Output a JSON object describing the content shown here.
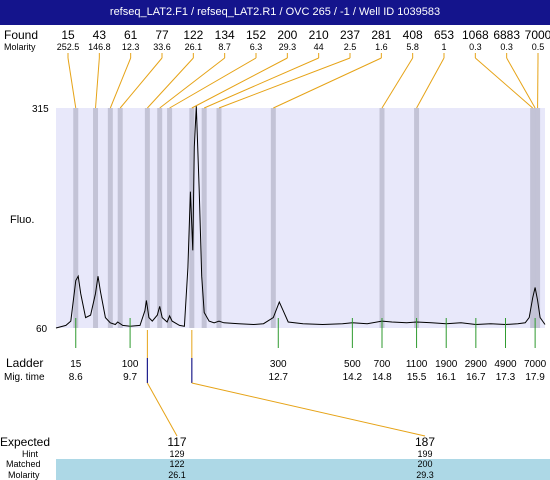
{
  "header": {
    "title": "refseq_LAT2.F1 / refseq_LAT2.R1 / OVC 265 / -1 / Well ID 1039583"
  },
  "labels": {
    "found": "Found",
    "molarity": "Molarity",
    "fluo": "Fluo.",
    "ladder": "Ladder",
    "mig_time": "Mig. time",
    "expected": "Expected",
    "hint": "Hint",
    "matched": "Matched",
    "molarity_bottom": "Molarity"
  },
  "chart_data": {
    "type": "line",
    "ylabel": "Fluo.",
    "ylim": [
      60,
      315
    ],
    "y_ticks": [
      315,
      60
    ],
    "xlim": [
      8.2,
      18.1
    ],
    "x_unit": "Mig. time",
    "found_peaks": [
      {
        "size": "15",
        "molarity": "252.5",
        "time": 8.6
      },
      {
        "size": "43",
        "molarity": "146.8",
        "time": 9.0
      },
      {
        "size": "61",
        "molarity": "12.3",
        "time": 9.3
      },
      {
        "size": "77",
        "molarity": "33.6",
        "time": 9.5
      },
      {
        "size": "122",
        "molarity": "26.1",
        "time": 10.05
      },
      {
        "size": "134",
        "molarity": "8.7",
        "time": 10.3
      },
      {
        "size": "152",
        "molarity": "6.3",
        "time": 10.5
      },
      {
        "size": "200",
        "molarity": "29.3",
        "time": 10.95
      },
      {
        "size": "210",
        "molarity": "44",
        "time": 11.2
      },
      {
        "size": "237",
        "molarity": "2.5",
        "time": 11.5
      },
      {
        "size": "281",
        "molarity": "1.6",
        "time": 12.6
      },
      {
        "size": "408",
        "molarity": "5.8",
        "time": 14.8
      },
      {
        "size": "653",
        "molarity": "1",
        "time": 15.5
      },
      {
        "size": "1068",
        "molarity": "0.3",
        "time": 17.85
      },
      {
        "size": "6883",
        "molarity": "0.3",
        "time": 17.9
      },
      {
        "size": "7000",
        "molarity": "0.5",
        "time": 17.95
      }
    ],
    "ladder": [
      {
        "size": "15",
        "time": 8.6
      },
      {
        "size": "100",
        "time": 9.7
      },
      {
        "size": "300",
        "time": 12.7
      },
      {
        "size": "500",
        "time": 14.2
      },
      {
        "size": "700",
        "time": 14.8
      },
      {
        "size": "1100",
        "time": 15.5
      },
      {
        "size": "1900",
        "time": 16.1
      },
      {
        "size": "2900",
        "time": 16.7
      },
      {
        "size": "4900",
        "time": 17.3
      },
      {
        "size": "7000",
        "time": 17.9
      }
    ],
    "trace": [
      [
        8.2,
        60
      ],
      [
        8.4,
        63
      ],
      [
        8.5,
        68
      ],
      [
        8.6,
        115
      ],
      [
        8.65,
        120
      ],
      [
        8.7,
        100
      ],
      [
        8.8,
        72
      ],
      [
        8.9,
        75
      ],
      [
        9.0,
        100
      ],
      [
        9.05,
        120
      ],
      [
        9.1,
        102
      ],
      [
        9.2,
        72
      ],
      [
        9.3,
        66
      ],
      [
        9.4,
        64
      ],
      [
        9.45,
        67
      ],
      [
        9.55,
        63
      ],
      [
        9.7,
        62
      ],
      [
        9.9,
        63
      ],
      [
        10.0,
        80
      ],
      [
        10.03,
        92
      ],
      [
        10.08,
        72
      ],
      [
        10.15,
        68
      ],
      [
        10.25,
        75
      ],
      [
        10.3,
        85
      ],
      [
        10.35,
        72
      ],
      [
        10.45,
        67
      ],
      [
        10.5,
        74
      ],
      [
        10.55,
        68
      ],
      [
        10.7,
        63
      ],
      [
        10.8,
        62
      ],
      [
        10.87,
        130
      ],
      [
        10.92,
        218
      ],
      [
        10.97,
        150
      ],
      [
        11.0,
        270
      ],
      [
        11.04,
        317
      ],
      [
        11.1,
        220
      ],
      [
        11.15,
        120
      ],
      [
        11.2,
        78
      ],
      [
        11.3,
        68
      ],
      [
        11.4,
        66
      ],
      [
        11.5,
        68
      ],
      [
        11.6,
        66
      ],
      [
        11.9,
        65
      ],
      [
        12.2,
        64
      ],
      [
        12.4,
        65
      ],
      [
        12.6,
        72
      ],
      [
        12.72,
        90
      ],
      [
        12.8,
        80
      ],
      [
        12.9,
        67
      ],
      [
        13.2,
        65
      ],
      [
        13.6,
        64
      ],
      [
        14.0,
        65
      ],
      [
        14.2,
        66
      ],
      [
        14.5,
        65
      ],
      [
        14.8,
        68
      ],
      [
        15.0,
        67
      ],
      [
        15.3,
        66
      ],
      [
        15.5,
        67
      ],
      [
        15.8,
        66
      ],
      [
        16.1,
        65
      ],
      [
        16.4,
        66
      ],
      [
        16.7,
        64
      ],
      [
        17.0,
        65
      ],
      [
        17.3,
        64
      ],
      [
        17.55,
        65
      ],
      [
        17.7,
        66
      ],
      [
        17.78,
        72
      ],
      [
        17.85,
        95
      ],
      [
        17.9,
        107
      ],
      [
        17.95,
        92
      ],
      [
        18.0,
        72
      ],
      [
        18.1,
        64
      ]
    ],
    "expected": [
      {
        "expected": "117",
        "hint": "129",
        "matched": "122",
        "molarity": "26.1",
        "time": 10.05
      },
      {
        "expected": "187",
        "hint": "199",
        "matched": "200",
        "molarity": "29.3",
        "time": 10.95
      }
    ],
    "colors": {
      "title_bg": "#14148c",
      "plot_bg": "#e8e8fa",
      "band": "#c3c3d6",
      "found_line": "#e6a317",
      "ladder_line": "#2e9a2e",
      "marker": "#1e1e8c",
      "table_highlight": "#add8e6",
      "trace": "#000000"
    }
  }
}
